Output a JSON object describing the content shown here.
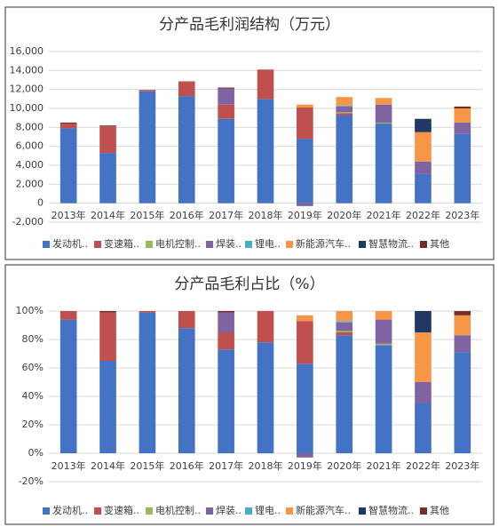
{
  "chart_data": [
    {
      "type": "bar",
      "stacked": true,
      "title": "分产品毛利润结构（万元）",
      "categories": [
        "2013年",
        "2014年",
        "2015年",
        "2016年",
        "2017年",
        "2018年",
        "2019年",
        "2020年",
        "2021年",
        "2022年",
        "2023年"
      ],
      "series": [
        {
          "name": "发动机..",
          "color": "#4472c4",
          "values": [
            7900,
            5300,
            11800,
            11300,
            8900,
            11000,
            6800,
            9300,
            8400,
            3100,
            7300
          ]
        },
        {
          "name": "变速箱..",
          "color": "#c0504d",
          "values": [
            500,
            2800,
            100,
            1500,
            1500,
            3100,
            3300,
            200,
            0,
            0,
            0
          ]
        },
        {
          "name": "电机控制..",
          "color": "#9bbb59",
          "values": [
            0,
            0,
            0,
            0,
            0,
            0,
            0,
            100,
            100,
            0,
            0
          ]
        },
        {
          "name": "焊装..",
          "color": "#8064a2",
          "values": [
            0,
            0,
            0,
            0,
            1700,
            0,
            -300,
            600,
            1900,
            1300,
            1200
          ]
        },
        {
          "name": "锂电..",
          "color": "#4bacc6",
          "values": [
            0,
            0,
            0,
            0,
            0,
            0,
            0,
            100,
            0,
            0,
            0
          ]
        },
        {
          "name": "新能源汽车..",
          "color": "#f79646",
          "values": [
            0,
            0,
            0,
            0,
            0,
            0,
            300,
            900,
            700,
            3100,
            1500
          ]
        },
        {
          "name": "智慧物流..",
          "color": "#1f3864",
          "values": [
            0,
            0,
            0,
            0,
            0,
            0,
            0,
            0,
            0,
            1400,
            0
          ]
        },
        {
          "name": "其他",
          "color": "#772c2a",
          "values": [
            100,
            100,
            50,
            50,
            100,
            0,
            0,
            0,
            0,
            0,
            200
          ]
        }
      ],
      "ylim": [
        -2000,
        16000
      ],
      "yticks": [
        {
          "value": -2000,
          "label": "-2,000"
        },
        0,
        {
          "value": 2000,
          "label": "2,000"
        },
        {
          "value": 4000,
          "label": "4,000"
        },
        {
          "value": 6000,
          "label": "6,000"
        },
        {
          "value": 8000,
          "label": "8,000"
        },
        {
          "value": 10000,
          "label": "10,000"
        },
        {
          "value": 12000,
          "label": "12,000"
        },
        {
          "value": 14000,
          "label": "14,000"
        },
        {
          "value": 16000,
          "label": "16,000"
        }
      ],
      "grid": true
    },
    {
      "type": "bar",
      "stacked": true,
      "title": "分产品毛利占比（%）",
      "categories": [
        "2013年",
        "2014年",
        "2015年",
        "2016年",
        "2017年",
        "2018年",
        "2019年",
        "2020年",
        "2021年",
        "2022年",
        "2023年"
      ],
      "series": [
        {
          "name": "发动机..",
          "color": "#4472c4",
          "values": [
            94,
            65,
            99,
            88,
            73,
            78,
            63,
            83,
            76,
            35,
            71
          ]
        },
        {
          "name": "变速箱..",
          "color": "#c0504d",
          "values": [
            6,
            34,
            1,
            12,
            12,
            22,
            30,
            2,
            0,
            0,
            0
          ]
        },
        {
          "name": "电机控制..",
          "color": "#9bbb59",
          "values": [
            0,
            0,
            0,
            0,
            0,
            0,
            0,
            1,
            1,
            0,
            0
          ]
        },
        {
          "name": "焊装..",
          "color": "#8064a2",
          "values": [
            0,
            0,
            0,
            0,
            14,
            0,
            -3,
            6,
            17,
            15,
            12
          ]
        },
        {
          "name": "锂电..",
          "color": "#4bacc6",
          "values": [
            0,
            0,
            0,
            0,
            0,
            0,
            0,
            1,
            0,
            0,
            0
          ]
        },
        {
          "name": "新能源汽车..",
          "color": "#f79646",
          "values": [
            0,
            0,
            0,
            0,
            0,
            0,
            4,
            7,
            6,
            35,
            14
          ]
        },
        {
          "name": "智慧物流..",
          "color": "#1f3864",
          "values": [
            0,
            0,
            0,
            0,
            0,
            0,
            0,
            0,
            0,
            15,
            0
          ]
        },
        {
          "name": "其他",
          "color": "#772c2a",
          "values": [
            0,
            1,
            0,
            0,
            1,
            0,
            0,
            0,
            0,
            0,
            3
          ]
        }
      ],
      "ylim": [
        -20,
        100
      ],
      "yticks": [
        {
          "value": -20,
          "label": "-20%"
        },
        {
          "value": 0,
          "label": "0%"
        },
        {
          "value": 20,
          "label": "20%"
        },
        {
          "value": 40,
          "label": "40%"
        },
        {
          "value": 60,
          "label": "60%"
        },
        {
          "value": 80,
          "label": "80%"
        },
        {
          "value": 100,
          "label": "100%"
        }
      ],
      "grid": true
    }
  ]
}
